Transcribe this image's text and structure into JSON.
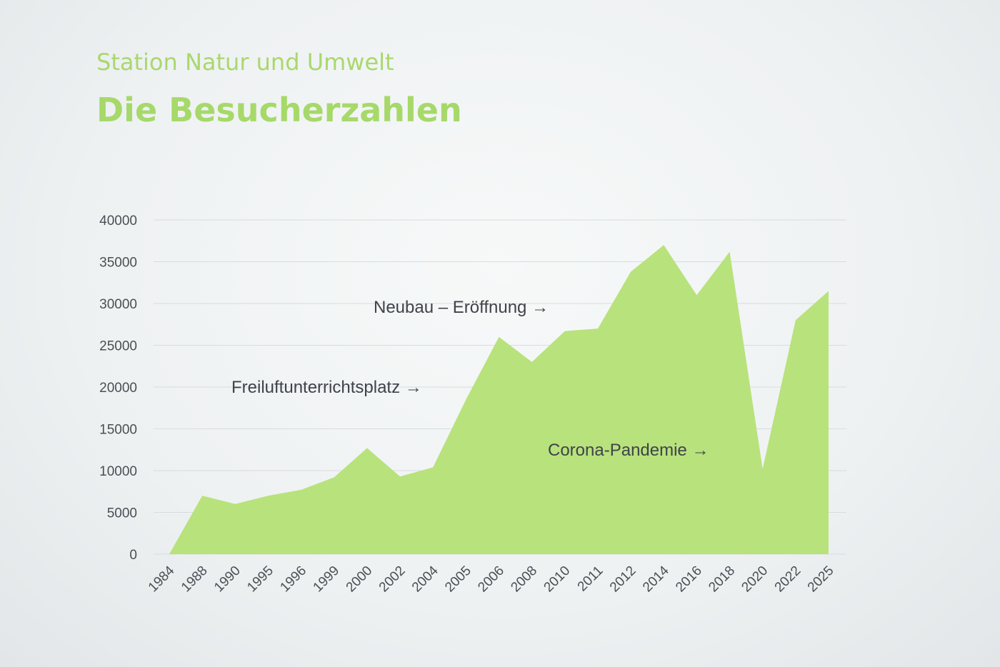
{
  "chart_data": {
    "type": "area",
    "subtitle": "Station Natur und Umwelt",
    "title": "Die Besucherzahlen",
    "categories": [
      "1984",
      "1988",
      "1990",
      "1995",
      "1996",
      "1999",
      "2000",
      "2002",
      "2004",
      "2005",
      "2006",
      "2008",
      "2010",
      "2011",
      "2012",
      "2014",
      "2016",
      "2018",
      "2020",
      "2022",
      "2025"
    ],
    "values": [
      0,
      7000,
      6000,
      7000,
      7700,
      9200,
      12700,
      9300,
      10400,
      18500,
      26000,
      23000,
      26700,
      27000,
      33800,
      37000,
      31000,
      36200,
      10200,
      28000,
      31500
    ],
    "color": "#b8e27c",
    "ylim": [
      0,
      40000
    ],
    "yticks": [
      0,
      5000,
      10000,
      15000,
      20000,
      25000,
      30000,
      35000,
      40000
    ],
    "grid": true,
    "annotations": [
      "Freiluftunterrichtsplatz →",
      "Neubau – Eröffnung →",
      "Corona-Pandemie →"
    ]
  }
}
